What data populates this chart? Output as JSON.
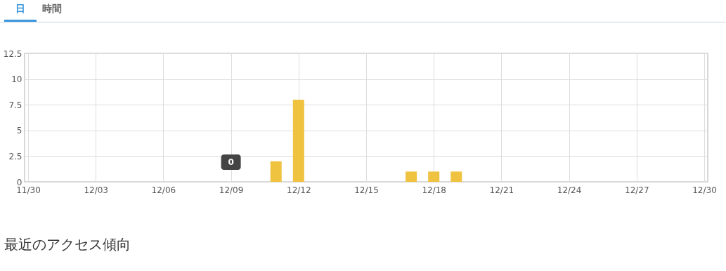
{
  "chart_data": {
    "type": "bar",
    "x": [
      "--12-09",
      "--12-11",
      "--12-12",
      "--12-17",
      "--12-18",
      "--12-19"
    ],
    "values": [
      0,
      2,
      8,
      1,
      1,
      1
    ],
    "color": "#efc240",
    "xlim": [
      "--11-30",
      "--12-30"
    ],
    "xticks": [
      {
        "value": "--11-30",
        "label": "11/30"
      },
      {
        "value": "--12-03",
        "label": "12/03"
      },
      {
        "value": "--12-06",
        "label": "12/06"
      },
      {
        "value": "--12-09",
        "label": "12/09"
      },
      {
        "value": "--12-12",
        "label": "12/12"
      },
      {
        "value": "--12-15",
        "label": "12/15"
      },
      {
        "value": "--12-18",
        "label": "12/18"
      },
      {
        "value": "--12-21",
        "label": "12/21"
      },
      {
        "value": "--12-24",
        "label": "12/24"
      },
      {
        "value": "--12-27",
        "label": "12/27"
      },
      {
        "value": "--12-30",
        "label": "12/30"
      }
    ],
    "ylim": [
      0,
      12.5
    ],
    "yticks": [
      0,
      2.5,
      5,
      7.5,
      10,
      12.5
    ],
    "grid": true,
    "annotations": [
      "日",
      "時間",
      {
        "text": "0",
        "x": "--12-09",
        "y": 0
      },
      "最近のアクセス傾向"
    ]
  }
}
